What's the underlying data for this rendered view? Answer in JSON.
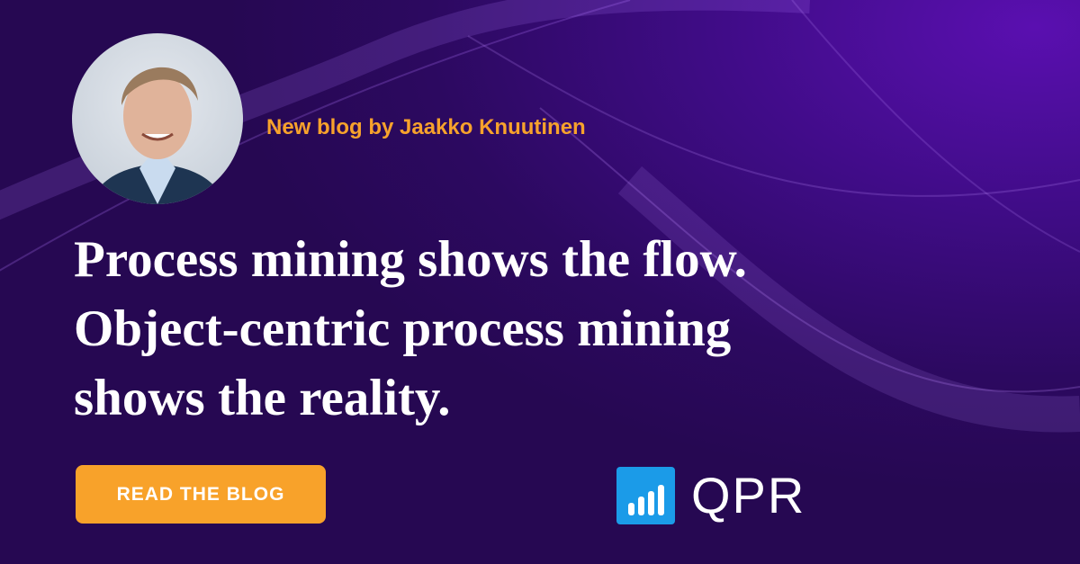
{
  "byline": "New blog by Jaakko Knuutinen",
  "headline": {
    "lines": [
      "Process mining shows the flow.",
      "Object-centric process mining",
      "shows the reality."
    ]
  },
  "cta": {
    "label": "READ THE BLOG"
  },
  "logo": {
    "text": "QPR",
    "icon": "bar-chart-icon"
  },
  "colors": {
    "background": "#2c0960",
    "accent": "#f8a22a",
    "logo_blue": "#1b9be8",
    "byline": "#f7a22c"
  }
}
